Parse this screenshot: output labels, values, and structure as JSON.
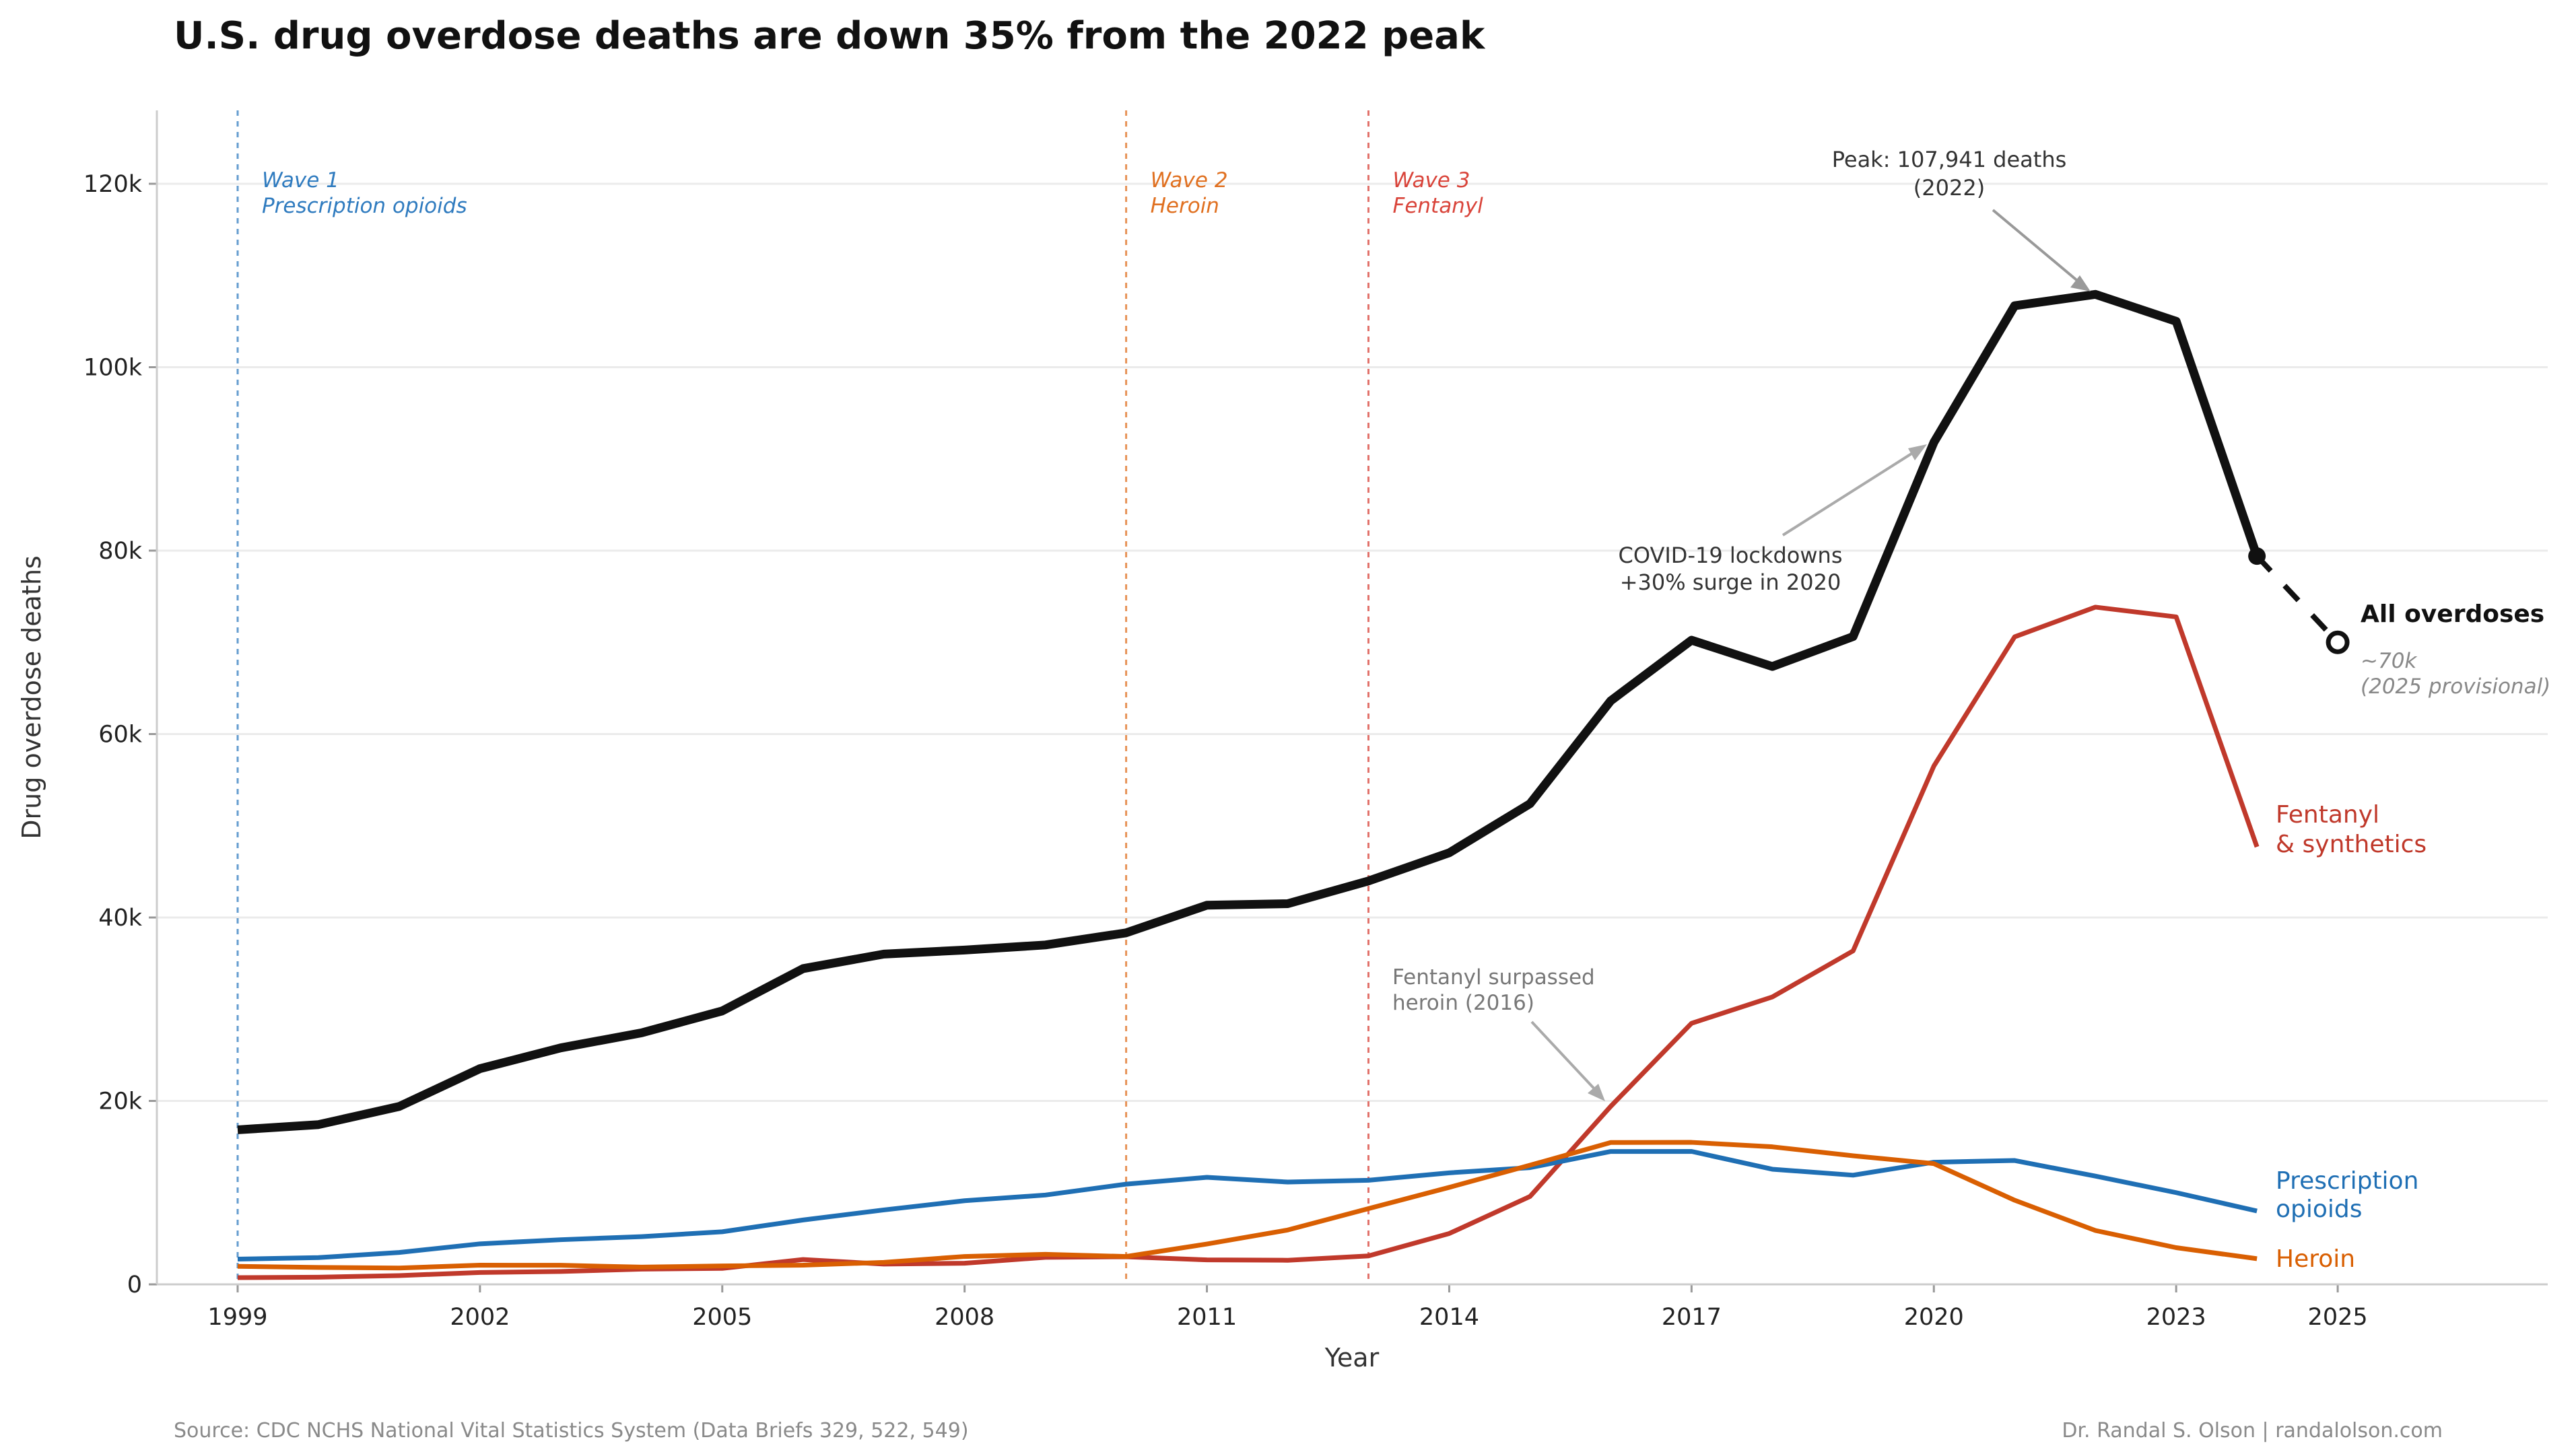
{
  "chart_data": {
    "type": "line",
    "title": "U.S. drug overdose deaths are down 35% from the 2022 peak",
    "xlabel": "Year",
    "ylabel": "Drug overdose deaths",
    "xlim": [
      1998,
      2027.6
    ],
    "ylim": [
      0,
      128000
    ],
    "grid": "horizontal",
    "legend": "direct labels at line ends",
    "x_ticks": [
      1999,
      2002,
      2005,
      2008,
      2011,
      2014,
      2017,
      2020,
      2023,
      2025
    ],
    "x_tick_labels": [
      "1999",
      "2002",
      "2005",
      "2008",
      "2011",
      "2014",
      "2017",
      "2020",
      "2023",
      "2025"
    ],
    "y_ticks": [
      0,
      20000,
      40000,
      60000,
      80000,
      100000,
      120000
    ],
    "y_tick_labels": [
      "0",
      "20k",
      "40k",
      "60k",
      "80k",
      "100k",
      "120k"
    ],
    "x": [
      1999,
      2000,
      2001,
      2002,
      2003,
      2004,
      2005,
      2006,
      2007,
      2008,
      2009,
      2010,
      2011,
      2012,
      2013,
      2014,
      2015,
      2016,
      2017,
      2018,
      2019,
      2020,
      2021,
      2022,
      2023,
      2024
    ],
    "series": [
      {
        "name": "All overdoses",
        "color": "#111111",
        "values": [
          16849,
          17415,
          19394,
          23518,
          25785,
          27424,
          29813,
          34425,
          36010,
          36450,
          37004,
          38329,
          41340,
          41502,
          43982,
          47055,
          52404,
          63632,
          70237,
          67367,
          70630,
          91799,
          106699,
          107941,
          105007,
          79400
        ]
      },
      {
        "name": "Fentanyl & synthetics",
        "color": "#c0392b",
        "values": [
          730,
          782,
          957,
          1295,
          1400,
          1664,
          1742,
          2707,
          2213,
          2306,
          2946,
          3007,
          2666,
          2628,
          3105,
          5544,
          9580,
          19413,
          28466,
          31335,
          36359,
          56516,
          70601,
          73838,
          72776,
          47700
        ]
      },
      {
        "name": "Prescription opioids",
        "color": "#1f6fb4",
        "values": [
          2749,
          2917,
          3476,
          4416,
          4867,
          5204,
          5735,
          7019,
          8113,
          9119,
          9738,
          10928,
          11670,
          11152,
          11346,
          12159,
          12727,
          14487,
          14495,
          12552,
          11904,
          13316,
          13503,
          11800,
          10000,
          8000
        ]
      },
      {
        "name": "Heroin",
        "color": "#d95f02",
        "values": [
          1960,
          1842,
          1779,
          2089,
          2080,
          1878,
          2009,
          2088,
          2399,
          3041,
          3278,
          3036,
          4397,
          5925,
          8257,
          10574,
          12989,
          15469,
          15482,
          14996,
          14019,
          13165,
          9173,
          5871,
          4000,
          2800
        ]
      }
    ],
    "projection": {
      "series": "All overdoses",
      "x": [
        2024,
        2025
      ],
      "values": [
        79400,
        70000
      ],
      "style": "dashed"
    },
    "all_label": "All overdoses",
    "projection_label_1": "~70k",
    "projection_label_2": "(2025 provisional)",
    "fentanyl_label_1": "Fentanyl",
    "fentanyl_label_2": "& synthetics",
    "rx_label_1": "Prescription",
    "rx_label_2": "opioids",
    "heroin_label": "Heroin",
    "waves": [
      {
        "year": 1999,
        "line1": "Wave 1",
        "line2": "Prescription opioids",
        "color": "#2f7bbf"
      },
      {
        "year": 2010,
        "line1": "Wave 2",
        "line2": "Heroin",
        "color": "#e07020"
      },
      {
        "year": 2013,
        "line1": "Wave 3",
        "line2": "Fentanyl",
        "color": "#d9443a"
      }
    ],
    "annotations": {
      "peak_1": "Peak: 107,941 deaths",
      "peak_2": "(2022)",
      "covid_1": "COVID-19 lockdowns",
      "covid_2": "+30% surge in 2020",
      "fent_1": "Fentanyl surpassed",
      "fent_2": "heroin (2016)"
    }
  },
  "footer": {
    "source": "Source: CDC NCHS National Vital Statistics System (Data Briefs 329, 522, 549)",
    "credit": "Dr. Randal S. Olson  |  randalolson.com"
  }
}
